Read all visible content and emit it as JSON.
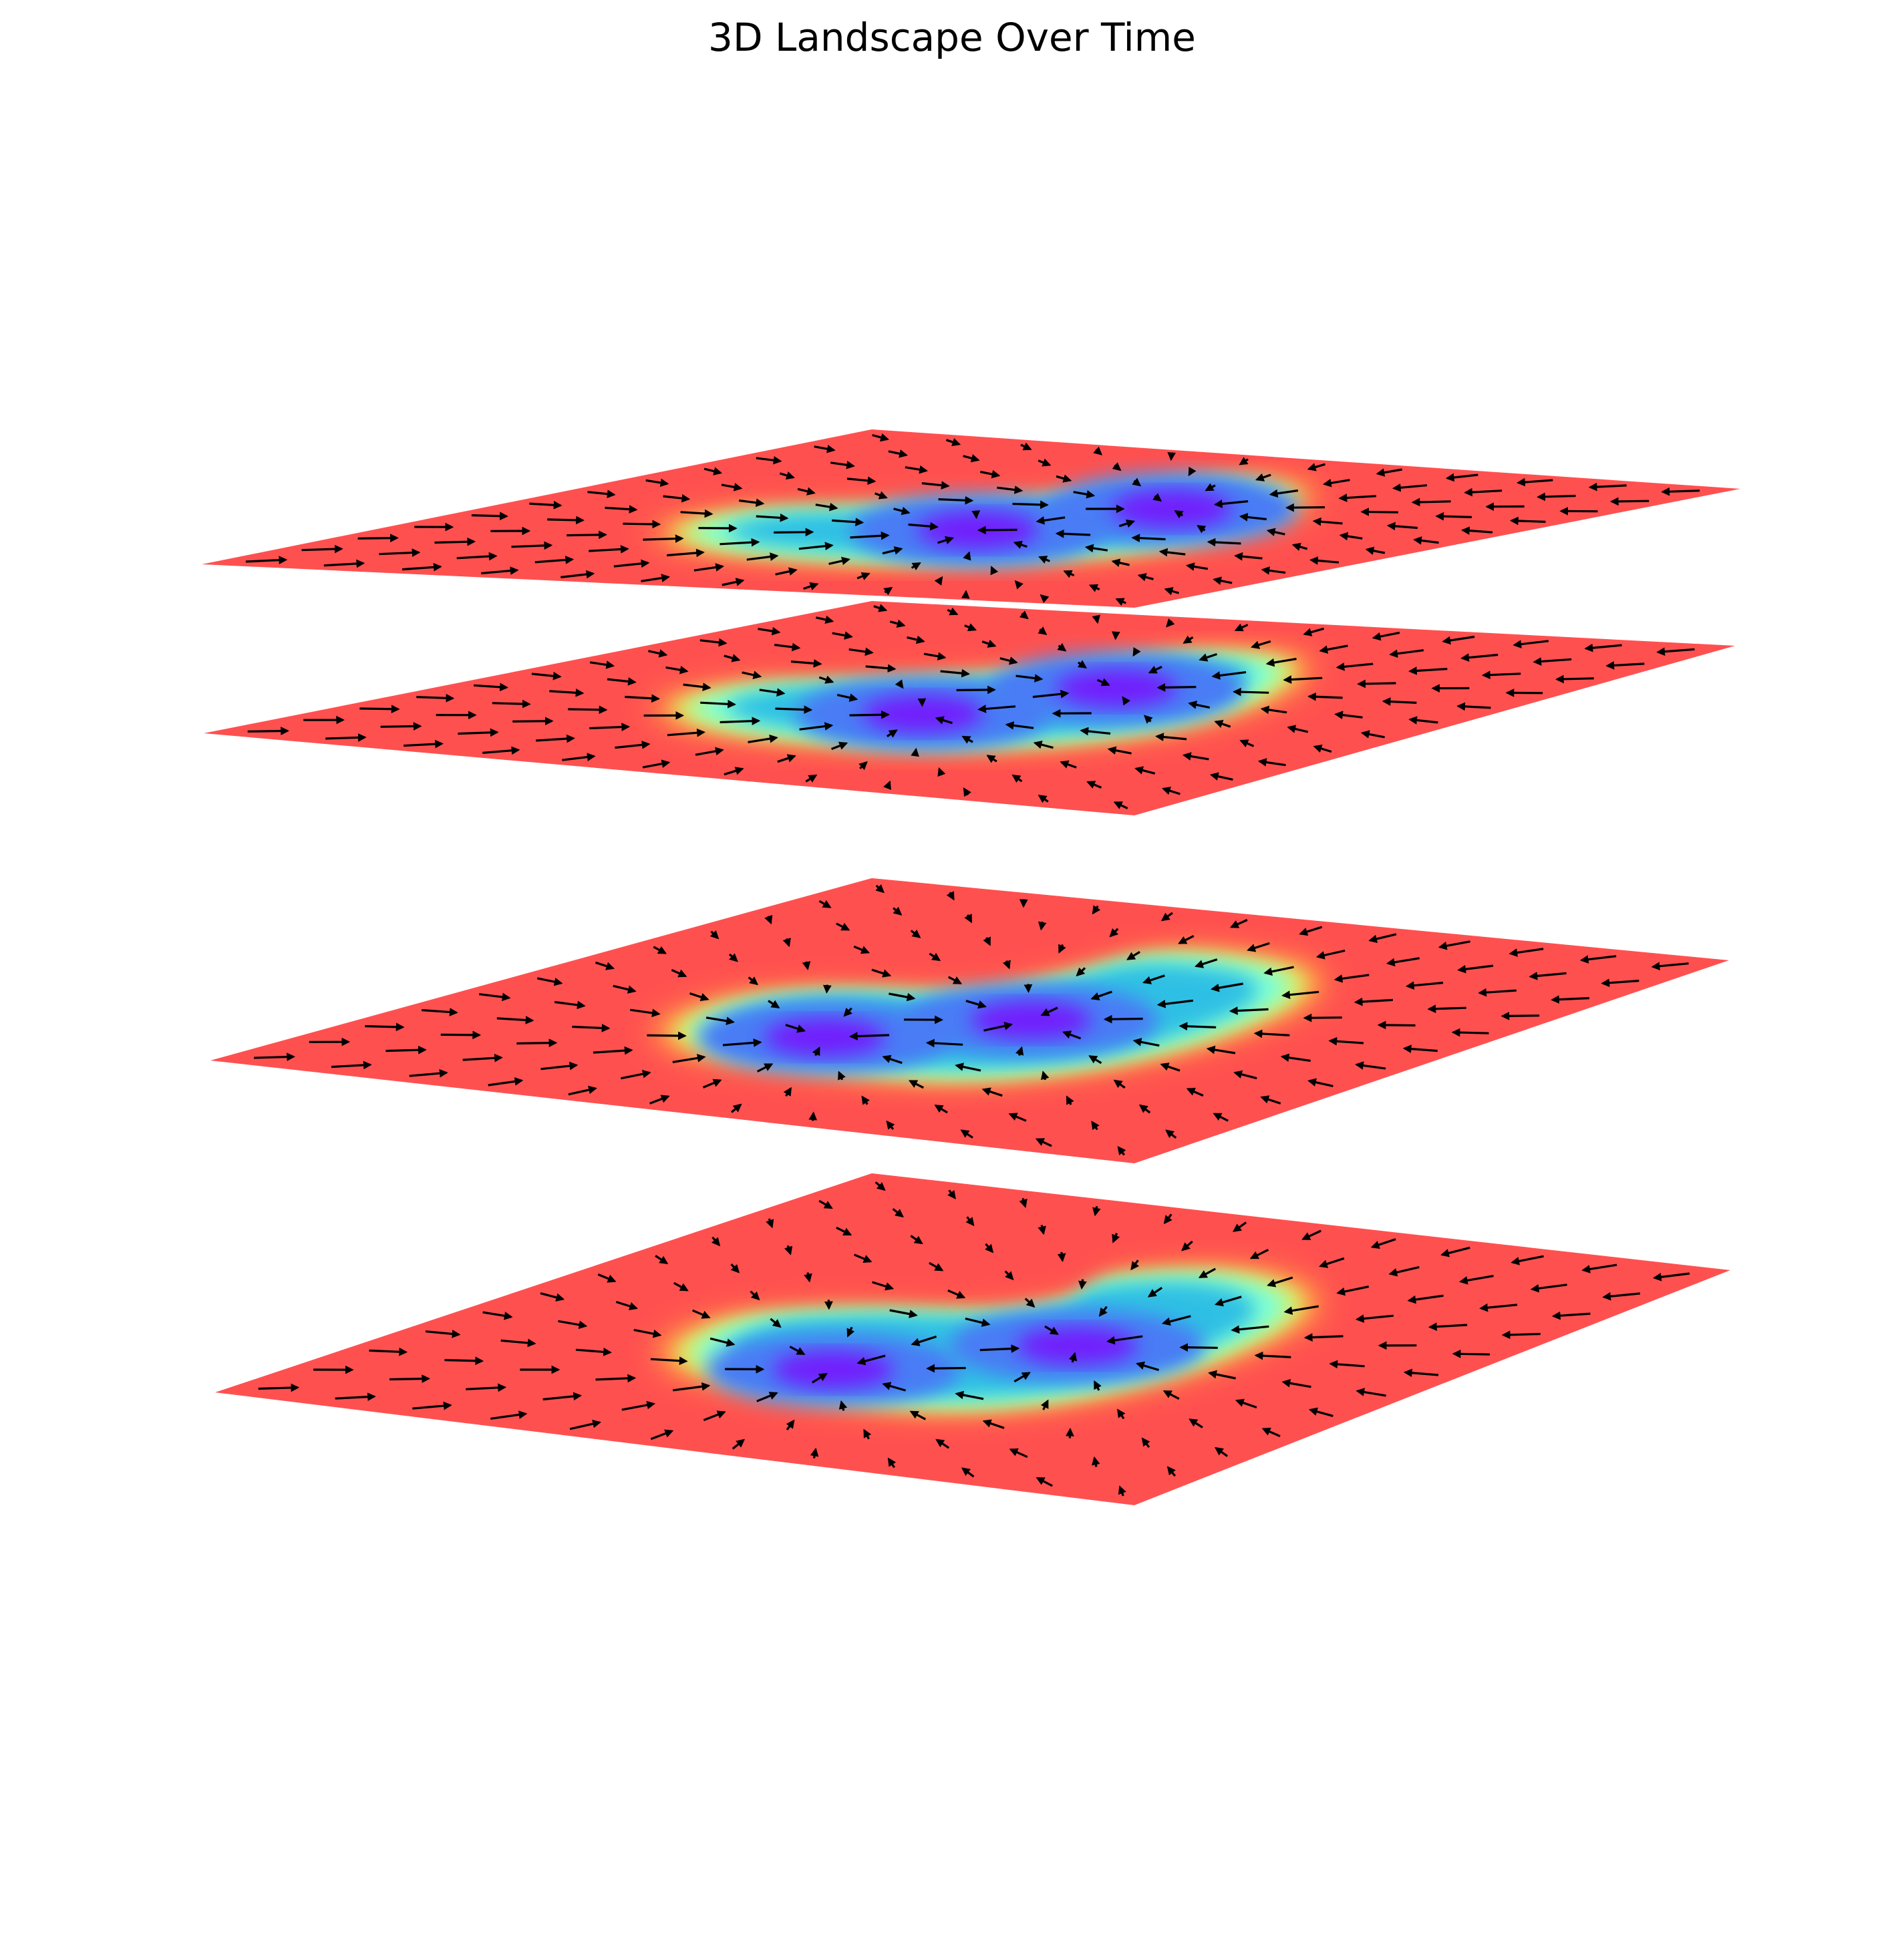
{
  "chart_data": {
    "type": "surface-3d",
    "title": "3D Landscape Over Time",
    "axes_visible": false,
    "colormap": [
      "#8000ff",
      "#4a7bf5",
      "#2dc0e4",
      "#80ffd4",
      "#d4f26e",
      "#ffb040",
      "#ff5050"
    ],
    "background_color": "#ff5050",
    "arrow_color": "#000000",
    "layers": [
      {
        "name": "",
        "time_index": 0,
        "basin": [
          [
            -0.55,
            -0.05
          ],
          [
            -0.5,
            -0.3
          ],
          [
            -0.3,
            -0.45
          ],
          [
            0.0,
            -0.5
          ],
          [
            0.35,
            -0.45
          ],
          [
            0.55,
            -0.3
          ],
          [
            0.6,
            -0.1
          ],
          [
            0.48,
            0.05
          ],
          [
            0.3,
            0.02
          ],
          [
            0.15,
            0.1
          ],
          [
            0.05,
            0.35
          ],
          [
            -0.1,
            0.5
          ],
          [
            -0.35,
            0.45
          ],
          [
            -0.5,
            0.25
          ]
        ],
        "minima": [
          [
            -0.35,
            0.1
          ],
          [
            0.0,
            -0.2
          ]
        ],
        "flow": "converging"
      },
      {
        "name": "",
        "time_index": 1,
        "basin": [
          [
            -0.55,
            -0.05
          ],
          [
            -0.5,
            -0.3
          ],
          [
            -0.3,
            -0.45
          ],
          [
            0.0,
            -0.5
          ],
          [
            0.35,
            -0.45
          ],
          [
            0.58,
            -0.3
          ],
          [
            0.65,
            -0.1
          ],
          [
            0.6,
            0.05
          ],
          [
            0.35,
            0.08
          ],
          [
            0.15,
            0.15
          ],
          [
            0.05,
            0.4
          ],
          [
            -0.1,
            0.5
          ],
          [
            -0.35,
            0.45
          ],
          [
            -0.52,
            0.25
          ]
        ],
        "minima": [
          [
            -0.3,
            0.15
          ],
          [
            0.0,
            -0.1
          ]
        ],
        "flow": "converging"
      },
      {
        "name": "",
        "time_index": 2,
        "basin": [
          [
            -0.55,
            -0.1
          ],
          [
            -0.45,
            -0.35
          ],
          [
            -0.2,
            -0.5
          ],
          [
            0.1,
            -0.5
          ],
          [
            0.4,
            -0.4
          ],
          [
            0.6,
            -0.25
          ],
          [
            0.62,
            -0.05
          ],
          [
            0.45,
            0.05
          ],
          [
            0.3,
            0.1
          ],
          [
            0.1,
            0.3
          ],
          [
            -0.05,
            0.5
          ],
          [
            -0.3,
            0.48
          ],
          [
            -0.5,
            0.25
          ]
        ],
        "minima": [
          [
            -0.2,
            0.0
          ],
          [
            0.2,
            -0.15
          ]
        ],
        "flow": "converging"
      },
      {
        "name": "",
        "time_index": 3,
        "basin": [
          [
            -0.55,
            -0.1
          ],
          [
            -0.45,
            -0.35
          ],
          [
            -0.2,
            -0.5
          ],
          [
            0.1,
            -0.5
          ],
          [
            0.4,
            -0.4
          ],
          [
            0.62,
            -0.25
          ],
          [
            0.7,
            -0.05
          ],
          [
            0.5,
            0.05
          ],
          [
            0.3,
            0.1
          ],
          [
            0.1,
            0.3
          ],
          [
            -0.05,
            0.5
          ],
          [
            -0.3,
            0.48
          ],
          [
            -0.5,
            0.25
          ]
        ],
        "minima": [
          [
            -0.1,
            -0.05
          ],
          [
            0.3,
            -0.2
          ]
        ],
        "flow": "converging"
      }
    ]
  }
}
